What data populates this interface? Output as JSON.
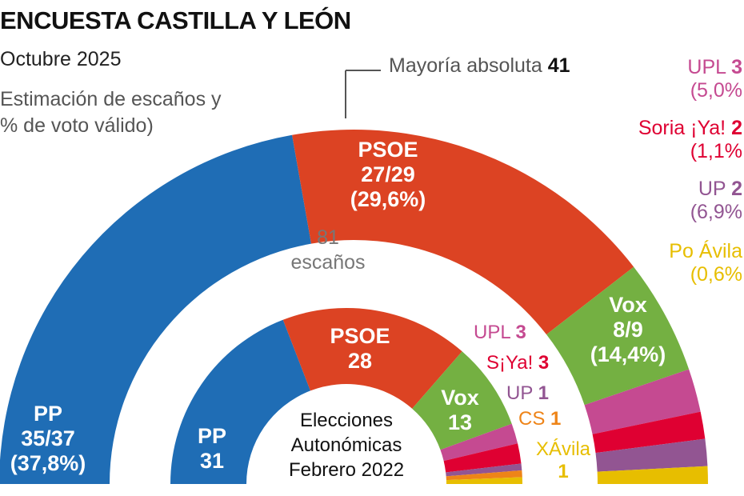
{
  "title": "ENCUESTA CASTILLA Y LEÓN",
  "subtitle": "Octubre 2025",
  "description": [
    "Estimación de escaños y",
    "% de voto válido)"
  ],
  "majority": {
    "label": "Mayoría absoluta",
    "value": "41"
  },
  "center_label": [
    "81",
    "escaños"
  ],
  "inner_center_label": [
    "Elecciones",
    "Autonómicas",
    "Febrero 2022"
  ],
  "colors": {
    "PP": "#1f6db5",
    "PSOE": "#dc4323",
    "Vox": "#74b042",
    "UPL": "#c54a91",
    "SoriaYa": "#df0032",
    "UP": "#925592",
    "CS": "#ee8418",
    "XAvila": "#e7be00"
  },
  "chart_data": [
    {
      "type": "parliament-semicircle",
      "title": "Encuesta octubre 2025",
      "total": 81,
      "series": [
        {
          "name": "PP",
          "seats": "35/37",
          "vote": "(37,8%)",
          "seats_mid": 36,
          "color": "#1f6db5"
        },
        {
          "name": "PSOE",
          "seats": "27/29",
          "vote": "(29,6%)",
          "seats_mid": 28,
          "color": "#dc4323"
        },
        {
          "name": "Vox",
          "seats": "8/9",
          "vote": "(14,4%)",
          "seats_mid": 8.5,
          "color": "#74b042"
        },
        {
          "name": "UPL",
          "seats": "3",
          "vote": "(5,0%",
          "seats_mid": 3.2,
          "color": "#c54a91"
        },
        {
          "name": "Soria ¡Ya!",
          "seats": "2",
          "vote": "(1,1%",
          "seats_mid": 2,
          "color": "#df0032"
        },
        {
          "name": "UP",
          "seats": "2",
          "vote": "(6,9%",
          "seats_mid": 2,
          "color": "#925592"
        },
        {
          "name": "Po Ávila",
          "seats": "",
          "vote": "(0,6%",
          "seats_mid": 1.3,
          "color": "#e7be00"
        }
      ]
    },
    {
      "type": "parliament-semicircle",
      "title": "Elecciones Autonómicas Febrero 2022",
      "total": 81,
      "series": [
        {
          "name": "PP",
          "seats": "31",
          "seats_mid": 31,
          "color": "#1f6db5"
        },
        {
          "name": "PSOE",
          "seats": "28",
          "seats_mid": 28,
          "color": "#dc4323"
        },
        {
          "name": "Vox",
          "seats": "13",
          "seats_mid": 13,
          "color": "#74b042"
        },
        {
          "name": "UPL",
          "seats": "3",
          "seats_mid": 3,
          "color": "#c54a91"
        },
        {
          "name": "S¡Ya!",
          "seats": "3",
          "seats_mid": 3,
          "color": "#df0032"
        },
        {
          "name": "UP",
          "seats": "1",
          "seats_mid": 1,
          "color": "#925592"
        },
        {
          "name": "CS",
          "seats": "1",
          "seats_mid": 1,
          "color": "#ee8418"
        },
        {
          "name": "XÁvila",
          "seats": "1",
          "seats_mid": 1,
          "color": "#e7be00"
        }
      ]
    }
  ]
}
